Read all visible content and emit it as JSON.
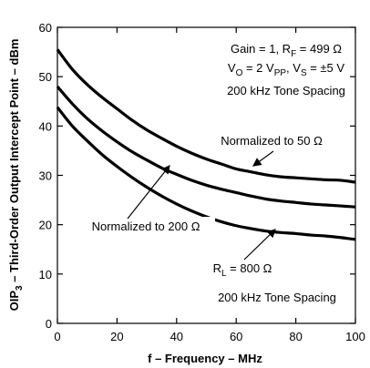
{
  "chart_data": {
    "type": "line",
    "xlabel": "f – Frequency – MHz",
    "ylabel_parts": [
      "OIP",
      "3",
      " – Third-Order Output Intercept Point – dBm"
    ],
    "xlim": [
      0,
      100
    ],
    "ylim": [
      0,
      60
    ],
    "xticks": [
      "0",
      "20",
      "40",
      "60",
      "80",
      "100"
    ],
    "yticks": [
      "0",
      "10",
      "20",
      "30",
      "40",
      "50",
      "60"
    ],
    "grid": false,
    "series": [
      {
        "name": "Normalized to 50 Ω",
        "x": [
          0,
          5,
          10,
          15,
          20,
          25,
          30,
          35,
          40,
          45,
          50,
          55,
          60,
          65,
          70,
          75,
          80,
          85,
          90,
          95,
          100
        ],
        "y": [
          55.5,
          51.5,
          48.4,
          45.8,
          43.5,
          41.2,
          39.2,
          37.5,
          35.9,
          34.5,
          33.3,
          32.3,
          31.3,
          30.7,
          30.1,
          29.7,
          29.5,
          29.3,
          29.1,
          29.0,
          28.6
        ]
      },
      {
        "name": "Normalized to 200 Ω",
        "x": [
          0,
          5,
          10,
          15,
          20,
          25,
          30,
          35,
          40,
          45,
          50,
          55,
          60,
          65,
          70,
          75,
          80,
          85,
          90,
          95,
          100
        ],
        "y": [
          48.0,
          44.5,
          41.5,
          39.0,
          36.8,
          34.8,
          33.1,
          31.5,
          30.2,
          29.0,
          28.0,
          27.2,
          26.5,
          25.8,
          25.2,
          24.8,
          24.5,
          24.2,
          24.0,
          23.8,
          23.6
        ]
      },
      {
        "name": "R_L = 800 Ω",
        "x": [
          0,
          5,
          10,
          15,
          20,
          25,
          30,
          35,
          40,
          45,
          50,
          55,
          60,
          65,
          70,
          75,
          80,
          85,
          90,
          95,
          100
        ],
        "y": [
          43.8,
          40.0,
          37.0,
          34.2,
          31.8,
          29.6,
          27.6,
          25.8,
          24.2,
          22.8,
          21.6,
          20.6,
          19.8,
          19.2,
          18.7,
          18.4,
          18.2,
          17.9,
          17.7,
          17.4,
          17.0
        ]
      }
    ],
    "annotations": {
      "top_line1": "Gain = 1, R",
      "top_line1_sub": "F",
      "top_line1_rest": " = 499 Ω",
      "top_line2_a": "V",
      "top_line2_a_sub": "O",
      "top_line2_b": " = 2 V",
      "top_line2_b_sub": "PP",
      "top_line2_c": ", V",
      "top_line2_c_sub": "S",
      "top_line2_d": " = ±5 V",
      "top_line3": "200 kHz Tone Spacing",
      "label_50": "Normalized to 50 Ω",
      "label_200": "Normalized to 200 Ω",
      "label_800_a": "R",
      "label_800_sub": "L",
      "label_800_b": " = 800 Ω",
      "bottom_note": "200 kHz Tone Spacing"
    }
  }
}
